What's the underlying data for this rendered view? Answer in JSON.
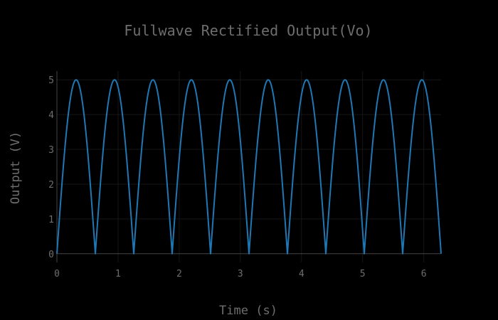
{
  "chart_data": {
    "type": "line",
    "title": "Fullwave Rectified Output(Vo)",
    "xlabel": "Time (s)",
    "ylabel": "Output (V)",
    "xlim": [
      0,
      6.2832
    ],
    "ylim": [
      -0.25,
      5.25
    ],
    "x_ticks": [
      0,
      1,
      2,
      3,
      4,
      5,
      6
    ],
    "y_ticks": [
      0,
      1,
      2,
      3,
      4,
      5
    ],
    "grid": true,
    "legend": "none",
    "series": [
      {
        "function": "abs-sine",
        "amplitude": 5,
        "angular_frequency": 5,
        "x_start": 0,
        "x_end": 6.2832,
        "samples": 600,
        "color": "#1f77b4"
      }
    ]
  },
  "colors": {
    "background": "#000000",
    "text": "#6e6e6e",
    "grid": "#161616",
    "axis": "#444444",
    "line": "#1f77b4"
  }
}
